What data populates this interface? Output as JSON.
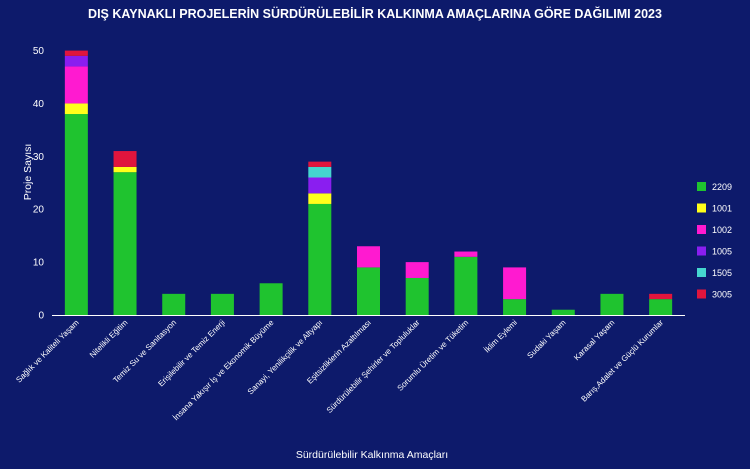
{
  "chart_data": {
    "type": "bar",
    "stacked": true,
    "title": "DIŞ KAYNAKLI PROJELERİN SÜRDÜRÜLEBİLİR KALKINMA AMAÇLARINA GÖRE DAĞILIMI 2023",
    "xlabel": "Sürdürülebilir Kalkınma Amaçları",
    "ylabel": "Proje Sayısı",
    "ylim": [
      0,
      52
    ],
    "yticks": [
      0,
      10,
      20,
      30,
      40,
      50
    ],
    "grid": false,
    "legend_position": "right",
    "categories": [
      "Sağlık ve Kaliteli Yaşam",
      "Nitelikli Eğitim",
      "Temiz Su ve Sanitasyon",
      "Erişilebilir ve Temiz Enerji",
      "İnsana Yakışır İş ve Ekonomik Büyüme",
      "Sanayi, Yenilikçilik ve Altyapı",
      "Eşitsizliklerin Azaltılması",
      "Sürdürülebilir Şehirler ve Topluluklar",
      "Sorumlu Üretim ve Tüketim",
      "İklim Eylemi",
      "Sudaki Yaşam",
      "Karasal Yaşam",
      "Barış,Adalet ve Güçlü Kurumlar"
    ],
    "series": [
      {
        "name": "2209",
        "color": "#1fc32f",
        "values": [
          38,
          27,
          4,
          4,
          6,
          21,
          9,
          7,
          11,
          3,
          1,
          4,
          3
        ]
      },
      {
        "name": "1001",
        "color": "#ffff1a",
        "values": [
          2,
          1,
          0,
          0,
          0,
          2,
          0,
          0,
          0,
          0,
          0,
          0,
          0
        ]
      },
      {
        "name": "1002",
        "color": "#ff1ad0",
        "values": [
          7,
          0,
          0,
          0,
          0,
          0,
          4,
          3,
          1,
          6,
          0,
          0,
          0
        ]
      },
      {
        "name": "1005",
        "color": "#8a1ef0",
        "values": [
          2,
          0,
          0,
          0,
          0,
          3,
          0,
          0,
          0,
          0,
          0,
          0,
          0
        ]
      },
      {
        "name": "1505",
        "color": "#45d6cf",
        "values": [
          0,
          0,
          0,
          0,
          0,
          2,
          0,
          0,
          0,
          0,
          0,
          0,
          0
        ]
      },
      {
        "name": "3005",
        "color": "#e0153d",
        "values": [
          1,
          3,
          0,
          0,
          0,
          1,
          0,
          0,
          0,
          0,
          0,
          0,
          1
        ]
      }
    ]
  }
}
